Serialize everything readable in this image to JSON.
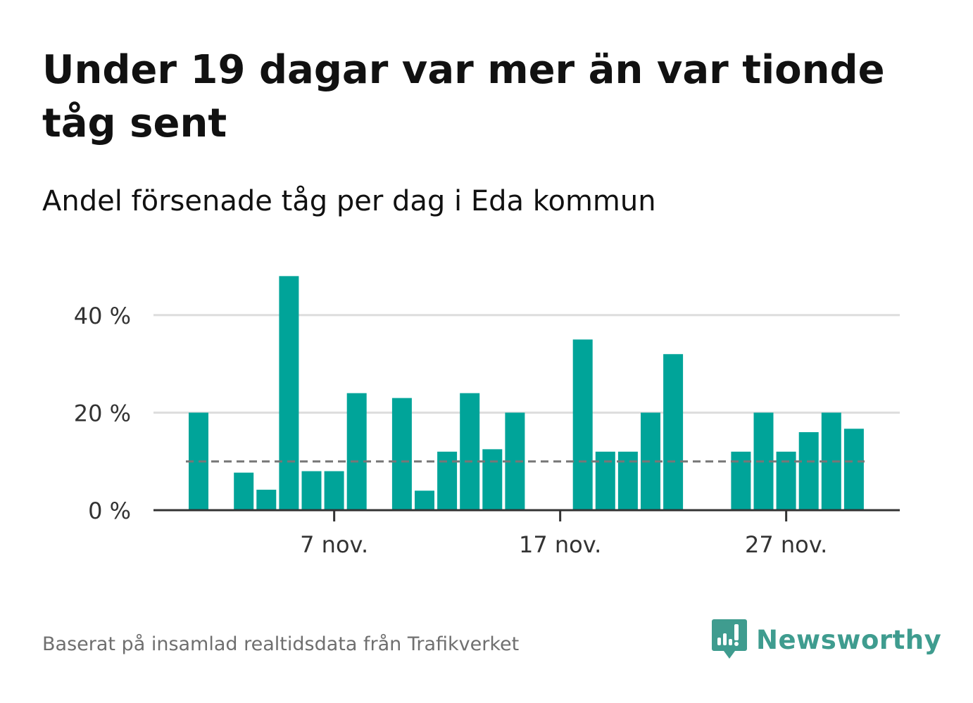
{
  "title": "Under 19 dagar var mer än var tionde tåg sent",
  "subtitle": "Andel försenade tåg per dag i Eda kommun",
  "footer": "Baserat på insamlad realtidsdata från Trafikverket",
  "brand": {
    "name": "Newsworthy",
    "icon": "newsworthy-logo-icon",
    "color": "#3f9c8f"
  },
  "colors": {
    "bar": "#00a499",
    "reference_line": "#777777",
    "grid": "#dddddd",
    "axis": "#333333"
  },
  "chart_data": {
    "type": "bar",
    "x_unit": "day of November",
    "x": [
      1,
      2,
      3,
      4,
      5,
      6,
      7,
      8,
      9,
      10,
      11,
      12,
      13,
      14,
      15,
      16,
      17,
      18,
      19,
      20,
      21,
      22,
      23,
      24,
      25,
      26,
      27,
      28,
      29,
      30
    ],
    "values": [
      20,
      null,
      7.7,
      4.2,
      48,
      8,
      8,
      24,
      null,
      23,
      4,
      12,
      24,
      12.5,
      20,
      null,
      null,
      35,
      12,
      12,
      20,
      32,
      null,
      null,
      12,
      20,
      12,
      16,
      20,
      16.7
    ],
    "xticks": [
      {
        "x": 7,
        "label": "7 nov."
      },
      {
        "x": 17,
        "label": "17 nov."
      },
      {
        "x": 27,
        "label": "27 nov."
      }
    ],
    "yticks": [
      {
        "value": 0,
        "label": "0 %"
      },
      {
        "value": 20,
        "label": "20 %"
      },
      {
        "value": 40,
        "label": "40 %"
      }
    ],
    "ylim": [
      0,
      50
    ],
    "reference_line": {
      "value": 10,
      "style": "dashed"
    },
    "grid": true
  }
}
